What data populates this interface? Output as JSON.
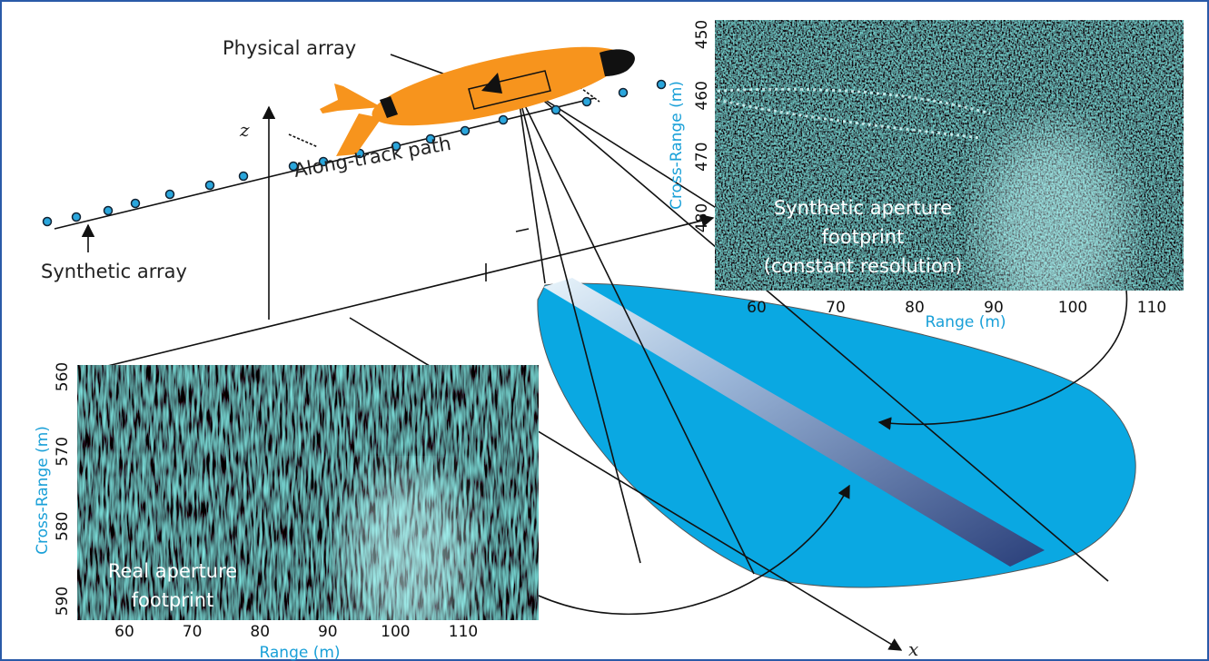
{
  "labels": {
    "physical_array": "Physical array",
    "along_track": "Along-track path",
    "synthetic_array": "Synthetic array",
    "z": "z",
    "x": "x"
  },
  "synthetic_image": {
    "caption": [
      "Synthetic aperture",
      "footprint",
      "(constant resolution)"
    ],
    "y_label": "Cross-Range (m)",
    "x_label": "Range (m)",
    "yticks": [
      450,
      460,
      470,
      480
    ],
    "xticks": [
      60,
      70,
      80,
      90,
      100,
      110
    ]
  },
  "real_image": {
    "caption": [
      "Real aperture",
      "footprint"
    ],
    "y_label": "Cross-Range (m)",
    "x_label": "Range (m)",
    "yticks": [
      560,
      570,
      580,
      590
    ],
    "xticks": [
      60,
      70,
      80,
      90,
      100,
      110
    ]
  }
}
